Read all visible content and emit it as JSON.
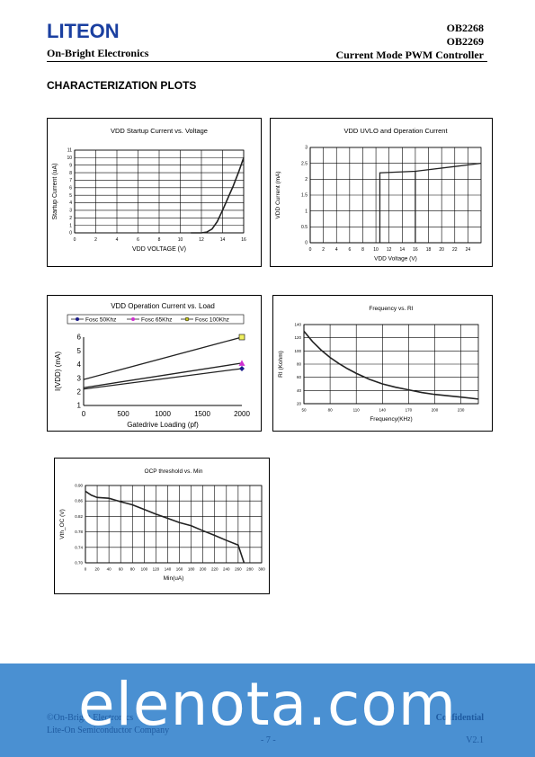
{
  "header": {
    "logo": "LITEON",
    "subtitle": "On-Bright Electronics",
    "part1": "OB2268",
    "part2": "OB2269",
    "product": "Current Mode PWM Controller",
    "section": "CHARACTERIZATION PLOTS"
  },
  "footer": {
    "watermark": "elenota.com",
    "copyright": "©On-Bright Electronics",
    "company": "Lite-On Semiconductor Company",
    "page": "- 7 -",
    "confidential": "Confidential",
    "version": "V2.1"
  },
  "chart_data": [
    {
      "type": "line",
      "title": "VDD Startup Current vs. Voltage",
      "xlabel": "VDD VOLTAGE (V)",
      "ylabel": "Startup Current (uA)",
      "xlim": [
        0,
        16
      ],
      "ylim": [
        0,
        11
      ],
      "xticks": [
        0,
        2,
        4,
        6,
        8,
        10,
        12,
        14,
        16
      ],
      "yticks": [
        0,
        1,
        2,
        3,
        4,
        5,
        6,
        7,
        8,
        9,
        10,
        11
      ],
      "grid": true,
      "series": [
        {
          "x": [
            11,
            12,
            12.5,
            13,
            13.5,
            14,
            14.5,
            15,
            15.5,
            16
          ],
          "y": [
            0,
            0,
            0.1,
            0.5,
            1.5,
            3,
            4.6,
            6.2,
            8,
            10
          ]
        }
      ]
    },
    {
      "type": "line",
      "title": "VDD UVLO and Operation Current",
      "xlabel": "VDD Voltage (V)",
      "ylabel": "VDD Current (mA)",
      "xlim": [
        0,
        26
      ],
      "ylim": [
        0,
        3
      ],
      "xticks": [
        0,
        2,
        4,
        6,
        8,
        10,
        12,
        14,
        16,
        18,
        20,
        22,
        24
      ],
      "yticks": [
        0,
        0.5,
        1,
        1.5,
        2,
        2.5,
        3
      ],
      "grid": true,
      "series": [
        {
          "x": [
            10.6,
            10.6,
            16,
            26
          ],
          "y": [
            0,
            2.2,
            2.25,
            2.5
          ]
        },
        {
          "x": [
            16,
            16
          ],
          "y": [
            0,
            2.25
          ]
        }
      ]
    },
    {
      "type": "line",
      "title": "VDD Operation Current vs. Load",
      "xlabel": "Gatedrive Loading (pf)",
      "ylabel": "I(VDD) (mA)",
      "xlim": [
        0,
        2000
      ],
      "ylim": [
        1,
        6
      ],
      "xticks": [
        0,
        500,
        1000,
        1500,
        2000
      ],
      "yticks": [
        1,
        2,
        3,
        4,
        5,
        6
      ],
      "grid": false,
      "legend": "top",
      "series": [
        {
          "name": "Fosc 50Khz",
          "x": [
            0,
            1000,
            2000
          ],
          "y": [
            2.2,
            2.95,
            3.7
          ]
        },
        {
          "name": "Fosc 65Khz",
          "x": [
            0,
            1000,
            2000
          ],
          "y": [
            2.3,
            3.2,
            4.1
          ]
        },
        {
          "name": "Fosc 100Khz",
          "x": [
            0,
            2000
          ],
          "y": [
            2.9,
            6.0
          ]
        }
      ]
    },
    {
      "type": "line",
      "title": "Frequency vs. RI",
      "xlabel": "Frequency(KHz)",
      "ylabel": "RI (Kohm)",
      "xlim": [
        50,
        250
      ],
      "ylim": [
        20,
        140
      ],
      "xticks": [
        50,
        80,
        110,
        140,
        170,
        200,
        230
      ],
      "yticks": [
        20,
        40,
        60,
        80,
        100,
        120,
        140
      ],
      "grid": true,
      "series": [
        {
          "x": [
            50,
            60,
            70,
            80,
            90,
            100,
            110,
            125,
            140,
            155,
            170,
            185,
            200,
            215,
            230,
            250
          ],
          "y": [
            130,
            114,
            101,
            90,
            81,
            73,
            66,
            57,
            50,
            45,
            41,
            37,
            34,
            32,
            30,
            27
          ]
        }
      ]
    },
    {
      "type": "line",
      "title": "OCP threshold vs. Min",
      "xlabel": "Min(uA)",
      "ylabel": "Vth_OC (V)",
      "xlim": [
        0,
        300
      ],
      "ylim": [
        0.7,
        0.9
      ],
      "xticks": [
        0,
        20,
        40,
        60,
        80,
        100,
        120,
        140,
        160,
        180,
        200,
        220,
        240,
        260,
        280,
        300
      ],
      "yticks": [
        0.7,
        0.74,
        0.78,
        0.82,
        0.86,
        0.9
      ],
      "ytick_labels": [
        "0.70",
        "0.74",
        "0.78",
        "0.82",
        "0.86",
        "0.90"
      ],
      "grid": true,
      "series": [
        {
          "x": [
            0,
            10,
            20,
            40,
            60,
            70,
            80,
            100,
            120,
            140,
            160,
            180,
            200,
            220,
            240,
            260,
            270
          ],
          "y": [
            0.885,
            0.875,
            0.869,
            0.867,
            0.858,
            0.854,
            0.85,
            0.838,
            0.826,
            0.815,
            0.804,
            0.796,
            0.783,
            0.771,
            0.758,
            0.746,
            0.7
          ]
        }
      ]
    }
  ]
}
